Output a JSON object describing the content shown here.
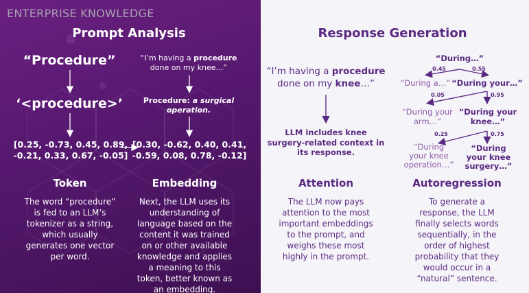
{
  "brand": "ENTERPRISE KNOWLEDGE",
  "prompt_analysis": {
    "title": "Prompt Analysis",
    "token_col": {
      "word": "“Procedure”",
      "token": "‘<procedure>’",
      "vector": [
        "[0.25, -0.73, 0.45, 0.89,",
        "-0.21, 0.33, 0.67, -0.05]"
      ],
      "heading": "Token",
      "body": [
        "The word “procedure”",
        "is fed to an LLM’s",
        "tokenizer as a string,",
        "which usually",
        "generates one vector",
        "per word."
      ]
    },
    "embedding_col": {
      "quote_pre": "“I’m having a ",
      "quote_bold": "procedure",
      "quote_line2": "done on my knee…”",
      "definition_label": "Procedure: ",
      "definition_italic": "a surgical",
      "definition_line2": "operation.",
      "vector": [
        "[0.30, -0.62, 0.40, 0.41,",
        "-0.59, 0.08, 0.78, -0.12]"
      ],
      "heading": "Embedding",
      "body": [
        "Next, the LLM uses its",
        "understanding of",
        "language based on the",
        "content it was trained",
        "on or other available",
        "knowledge and applies",
        "a meaning to this",
        "token, better known as",
        "an embedding."
      ]
    }
  },
  "response_generation": {
    "title": "Response Generation",
    "attention_col": {
      "quote_pre": "“I’m having a ",
      "quote_bold": "procedure",
      "quote_line2_pre": "done on my ",
      "quote_line2_bold": "knee",
      "quote_line2_post": "…”",
      "result": [
        "LLM includes knee",
        "surgery-related context in",
        "its response."
      ],
      "heading": "Attention",
      "body": [
        "The LLM now pays",
        "attention to the most",
        "important embeddings",
        "to the prompt, and",
        "weighs these most",
        "highly in the prompt."
      ]
    },
    "autoregression_col": {
      "root": "“During…”",
      "level1": {
        "left": "“During a…”",
        "right": "“During your…”",
        "p_left": "0.45",
        "p_right": "0.55"
      },
      "level2": {
        "left": [
          "“During your",
          "arm…”"
        ],
        "right": [
          "“During your",
          "knee…”"
        ],
        "p_left": "0.05",
        "p_right": "0.95"
      },
      "level3": {
        "left": [
          "“During",
          "your knee",
          "operation…”"
        ],
        "right": [
          "“During",
          "your knee",
          "surgery…”"
        ],
        "p_left": "0.25",
        "p_right": "0.75"
      },
      "heading": "Autoregression",
      "body": [
        "To generate a",
        "response, the LLM",
        "finally selects words",
        "sequentially, in the",
        "order of highest",
        "probability that they",
        "would occur in a",
        "“natural” sentence."
      ]
    }
  },
  "colors": {
    "left_bg": "#55186e",
    "right_bg": "#f5f4f8",
    "accent": "#5a2a82",
    "muted": "#8a5aa8",
    "brand": "#a8a0b0"
  }
}
